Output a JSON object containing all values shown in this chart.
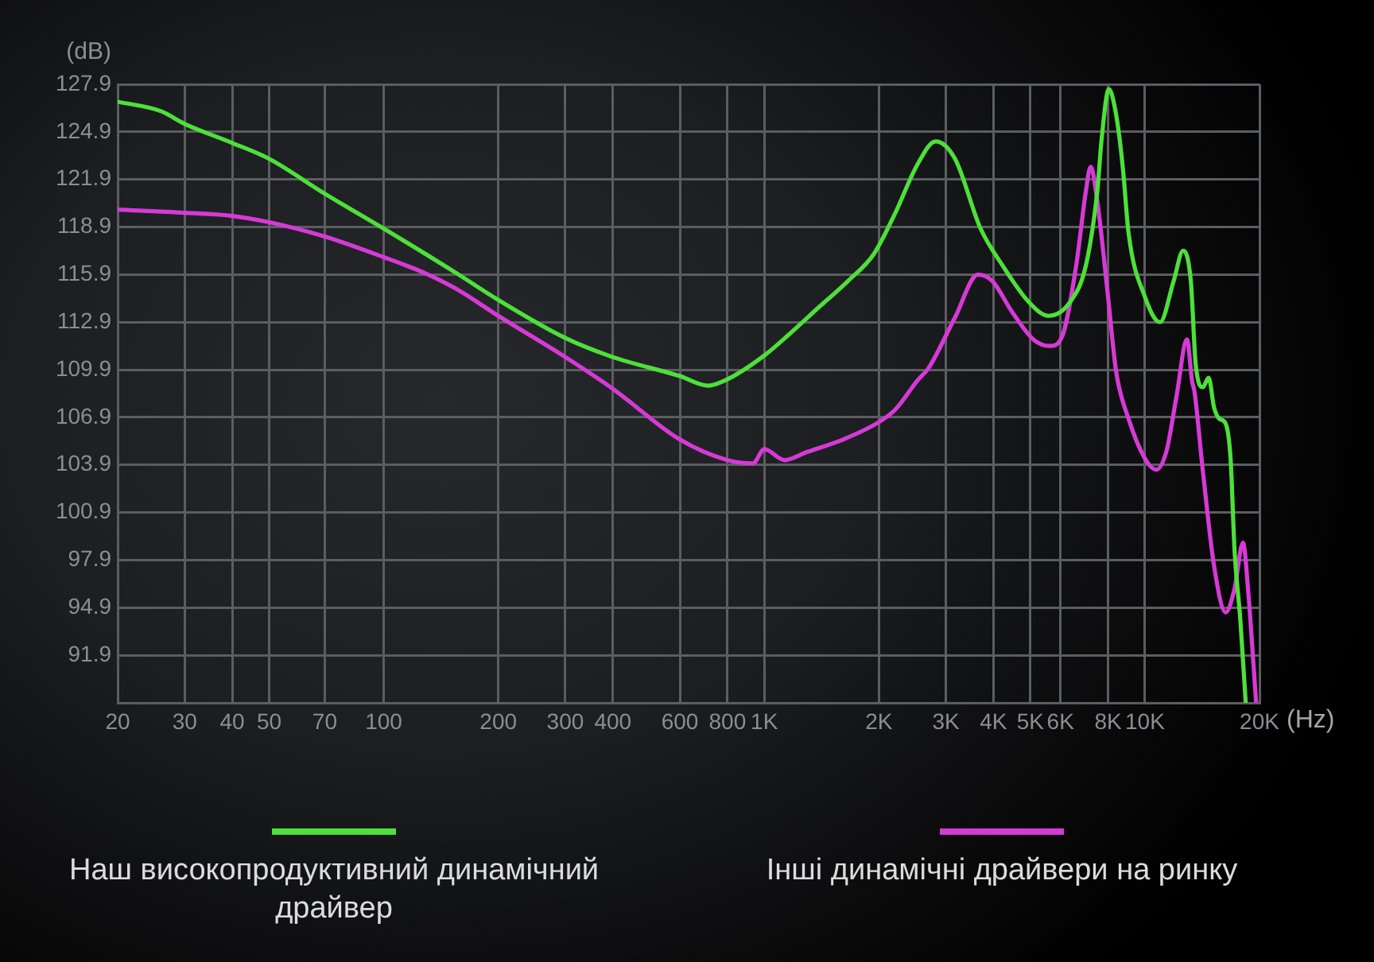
{
  "chart_data": {
    "type": "line",
    "xlabel": "(Hz)",
    "ylabel": "(dB)",
    "log": "x",
    "xlim": [
      20,
      20000
    ],
    "xticks": [
      20,
      30,
      40,
      50,
      70,
      100,
      200,
      300,
      400,
      600,
      800,
      {
        "value": 1000,
        "label": "1K"
      },
      {
        "value": 2000,
        "label": "2K"
      },
      {
        "value": 3000,
        "label": "3K"
      },
      {
        "value": 4000,
        "label": "4K"
      },
      {
        "value": 5000,
        "label": "5K"
      },
      {
        "value": 6000,
        "label": "6K"
      },
      {
        "value": 8000,
        "label": "8K"
      },
      {
        "value": 10000,
        "label": "10K"
      },
      {
        "value": 20000,
        "label": "20K"
      }
    ],
    "ylim": [
      88.9,
      127.9
    ],
    "yticks": [
      91.9,
      94.9,
      97.9,
      100.9,
      103.9,
      106.9,
      109.9,
      112.9,
      115.9,
      118.9,
      121.9,
      124.9,
      127.9
    ],
    "grid": true,
    "legend": "bottom",
    "series": [
      {
        "name": "Наш високопродуктивний динамічний драйвер",
        "color": "#4de03a",
        "x": [
          20,
          26,
          30,
          40,
          50,
          70,
          100,
          155,
          200,
          300,
          400,
          600,
          710,
          800,
          1000,
          1170,
          1370,
          1660,
          1940,
          2210,
          2520,
          2820,
          3170,
          3700,
          4220,
          4940,
          5580,
          6370,
          7000,
          7500,
          7700,
          8040,
          8200,
          8500,
          8760,
          9060,
          10000,
          10960,
          11900,
          12600,
          13200,
          13600,
          14200,
          14700,
          15200,
          15700,
          16300,
          16800,
          17200,
          17800,
          18400
        ],
        "values": [
          126.8,
          126.2,
          125.4,
          124.2,
          123.2,
          121.0,
          118.8,
          116.0,
          114.3,
          111.9,
          110.7,
          109.5,
          108.9,
          109.3,
          110.8,
          112.2,
          113.7,
          115.5,
          117.2,
          119.8,
          122.8,
          124.3,
          123.2,
          118.8,
          116.5,
          114.2,
          113.3,
          114.2,
          116.5,
          121.2,
          124.5,
          127.6,
          127.2,
          125.2,
          122.5,
          118.5,
          114.5,
          112.9,
          115.5,
          117.4,
          115.5,
          110.2,
          108.8,
          109.4,
          107.5,
          106.8,
          106.5,
          104.2,
          98.5,
          94.2,
          88.9
        ]
      },
      {
        "name": "Інші динамічні драйвери на ринку",
        "color": "#d63ad6",
        "x": [
          20,
          30,
          40,
          50,
          70,
          100,
          128,
          155,
          200,
          300,
          400,
          600,
          800,
          934,
          1000,
          1130,
          1290,
          1610,
          2000,
          2210,
          2520,
          2700,
          3170,
          3640,
          3970,
          4490,
          5100,
          5620,
          6060,
          6600,
          7000,
          7200,
          7500,
          8000,
          8400,
          9060,
          10000,
          10700,
          11400,
          12100,
          12900,
          13300,
          13500,
          14200,
          15200,
          16300,
          17200,
          18100,
          18700,
          19300,
          19600
        ],
        "values": [
          120.0,
          119.8,
          119.6,
          119.2,
          118.3,
          117.0,
          116.0,
          115.0,
          113.3,
          110.7,
          108.7,
          105.5,
          104.2,
          104.0,
          104.9,
          104.2,
          104.7,
          105.5,
          106.6,
          107.4,
          109.2,
          110.0,
          113.2,
          115.9,
          115.5,
          113.5,
          111.8,
          111.4,
          112.0,
          116.5,
          121.2,
          122.7,
          120.5,
          114.5,
          109.8,
          106.8,
          104.3,
          103.6,
          104.8,
          108.2,
          111.8,
          109.2,
          108.5,
          103.5,
          97.5,
          94.6,
          96.1,
          99.0,
          95.8,
          91.2,
          88.9
        ]
      }
    ]
  }
}
